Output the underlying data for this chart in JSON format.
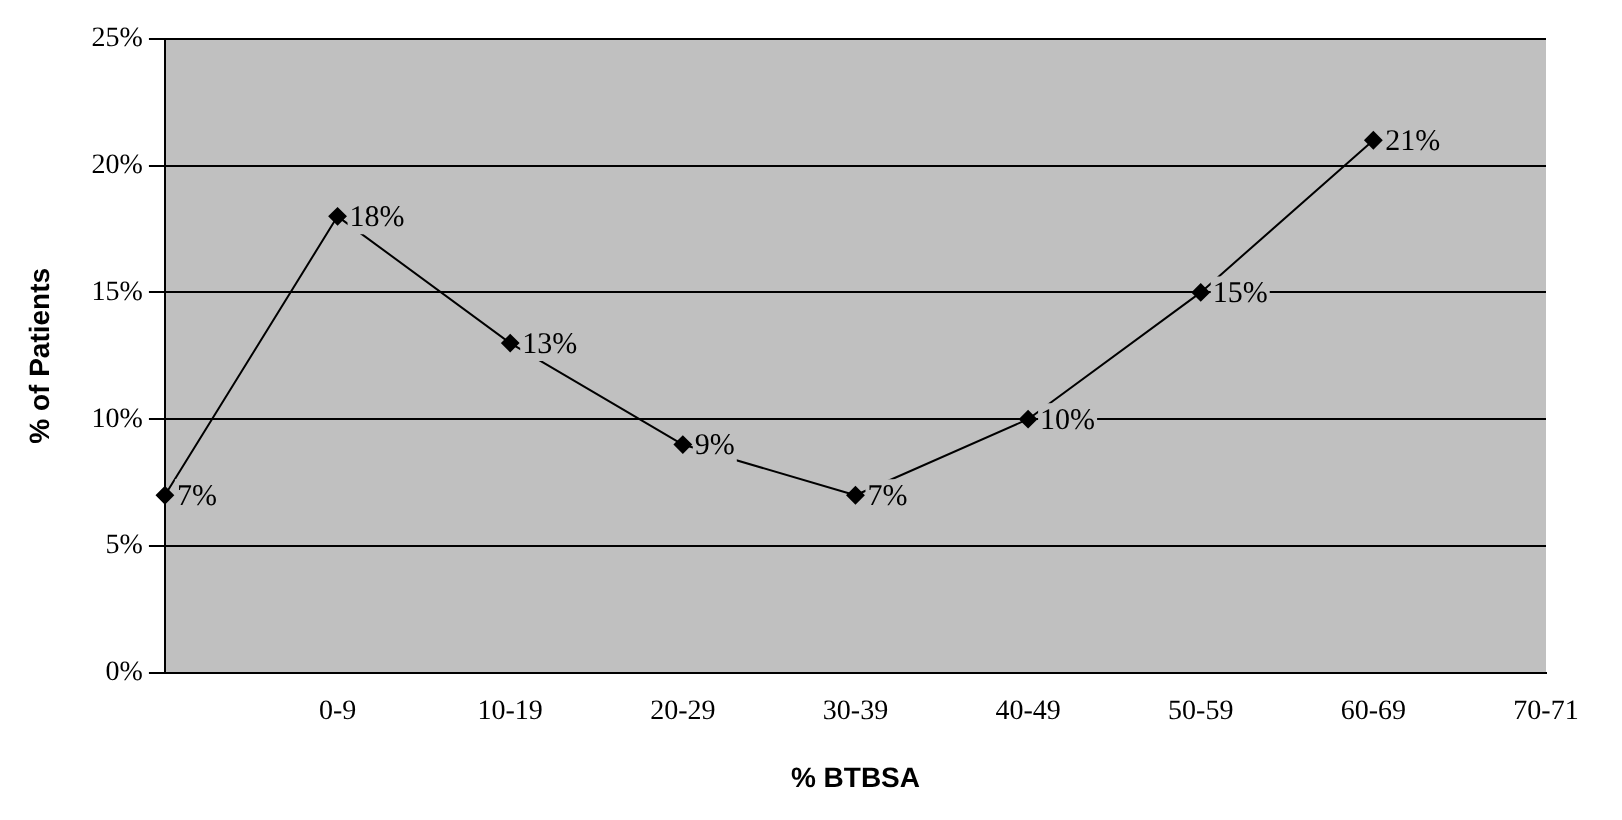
{
  "chart_data": {
    "type": "line",
    "xlabel": "% BTBSA",
    "ylabel": "% of Patients",
    "categories": [
      null,
      "0-9",
      "10-19",
      "20-29",
      "30-39",
      "40-49",
      "50-59",
      "60-69",
      "70-71"
    ],
    "series": [
      {
        "color": "#000000",
        "values": [
          7,
          18,
          13,
          9,
          7,
          10,
          15,
          21,
          null
        ],
        "value_labels": [
          "7%",
          "18%",
          "13%",
          "9%",
          "7%",
          "10%",
          "15%",
          "21%",
          null
        ]
      }
    ],
    "ylim": [
      0,
      25
    ],
    "yticks": [
      {
        "value": 0,
        "label": "0%"
      },
      {
        "value": 5,
        "label": "5%"
      },
      {
        "value": 10,
        "label": "10%"
      },
      {
        "value": 15,
        "label": "15%"
      },
      {
        "value": 20,
        "label": "20%"
      },
      {
        "value": 25,
        "label": "25%"
      }
    ],
    "grid": "y",
    "legend": false,
    "marker": "diamond",
    "line_style": "solid"
  }
}
